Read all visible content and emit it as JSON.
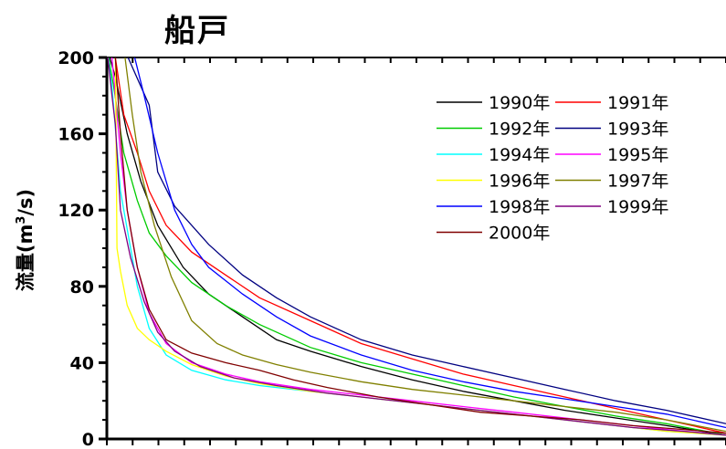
{
  "chart_data": {
    "type": "line",
    "title": "船戸",
    "xlabel": "",
    "ylabel": "流量(m3/s)",
    "ylabel_parts": {
      "main": "流量(m",
      "sup": "3",
      "tail": "/s)"
    },
    "ylim": [
      0,
      200
    ],
    "xlim": [
      0,
      365
    ],
    "y_ticks": [
      "0",
      "40",
      "80",
      "120",
      "160",
      "200"
    ],
    "y_tick_values": [
      0,
      40,
      80,
      120,
      160,
      200
    ],
    "grid": false,
    "legend_position": "top-right",
    "series": [
      {
        "name": "1990年",
        "color": "#000000",
        "x": [
          0,
          5,
          12,
          20,
          30,
          45,
          60,
          80,
          100,
          120,
          150,
          180,
          210,
          240,
          270,
          300,
          330,
          365
        ],
        "y": [
          205,
          190,
          160,
          135,
          112,
          90,
          76,
          64,
          52,
          46,
          38,
          31,
          25,
          20,
          15,
          11,
          7,
          2
        ]
      },
      {
        "name": "1991年",
        "color": "#ff0000",
        "x": [
          0,
          5,
          10,
          18,
          25,
          35,
          50,
          70,
          90,
          120,
          150,
          180,
          210,
          240,
          270,
          300,
          330,
          365
        ],
        "y": [
          205,
          200,
          170,
          150,
          130,
          112,
          98,
          86,
          74,
          62,
          50,
          42,
          34,
          28,
          22,
          16,
          10,
          3
        ]
      },
      {
        "name": "1992年",
        "color": "#00cc00",
        "x": [
          0,
          4,
          10,
          18,
          25,
          35,
          50,
          70,
          90,
          120,
          150,
          180,
          210,
          240,
          270,
          300,
          330,
          365
        ],
        "y": [
          205,
          185,
          150,
          125,
          108,
          96,
          82,
          70,
          60,
          48,
          40,
          34,
          28,
          22,
          17,
          12,
          8,
          2
        ]
      },
      {
        "name": "1993年",
        "color": "#000080",
        "x": [
          0,
          10,
          25,
          30,
          40,
          60,
          80,
          100,
          120,
          150,
          180,
          210,
          240,
          270,
          300,
          330,
          365
        ],
        "y": [
          205,
          205,
          175,
          140,
          122,
          102,
          86,
          74,
          64,
          52,
          44,
          38,
          32,
          26,
          20,
          15,
          8
        ]
      },
      {
        "name": "1994年",
        "color": "#00ffff",
        "x": [
          0,
          3,
          8,
          12,
          18,
          25,
          35,
          50,
          70,
          90,
          120,
          150,
          180,
          210,
          240,
          270,
          300,
          330,
          365
        ],
        "y": [
          205,
          185,
          130,
          110,
          80,
          58,
          44,
          36,
          31,
          28,
          25,
          22,
          19,
          16,
          13,
          10,
          7,
          4,
          2
        ]
      },
      {
        "name": "1995年",
        "color": "#ff00ff",
        "x": [
          0,
          3,
          8,
          12,
          18,
          25,
          35,
          50,
          70,
          90,
          120,
          150,
          180,
          210,
          240,
          270,
          300,
          330,
          365
        ],
        "y": [
          205,
          200,
          150,
          120,
          90,
          66,
          50,
          40,
          34,
          30,
          26,
          23,
          20,
          17,
          14,
          11,
          8,
          5,
          2
        ]
      },
      {
        "name": "1996年",
        "color": "#ffff00",
        "x": [
          0,
          5,
          6,
          8,
          12,
          18,
          25,
          35,
          50,
          70,
          90,
          120,
          150,
          180,
          210,
          240,
          270,
          300,
          330,
          365
        ],
        "y": [
          205,
          205,
          100,
          88,
          70,
          58,
          52,
          46,
          39,
          33,
          29,
          25,
          22,
          19,
          16,
          13,
          10,
          7,
          4,
          2
        ]
      },
      {
        "name": "1997年",
        "color": "#808000",
        "x": [
          0,
          10,
          15,
          20,
          28,
          38,
          50,
          65,
          80,
          100,
          120,
          150,
          180,
          210,
          240,
          270,
          300,
          330,
          365
        ],
        "y": [
          205,
          205,
          170,
          140,
          112,
          85,
          62,
          50,
          44,
          39,
          35,
          30,
          26,
          23,
          20,
          17,
          14,
          10,
          4
        ]
      },
      {
        "name": "1998年",
        "color": "#0000ff",
        "x": [
          0,
          15,
          22,
          30,
          40,
          50,
          60,
          80,
          100,
          120,
          150,
          180,
          210,
          240,
          270,
          300,
          330,
          365
        ],
        "y": [
          205,
          205,
          180,
          150,
          120,
          102,
          90,
          76,
          64,
          54,
          44,
          36,
          30,
          25,
          21,
          17,
          13,
          6
        ]
      },
      {
        "name": "1999年",
        "color": "#800080",
        "x": [
          0,
          3,
          5,
          8,
          14,
          22,
          30,
          40,
          55,
          75,
          100,
          130,
          160,
          190,
          220,
          250,
          280,
          310,
          340,
          365
        ],
        "y": [
          205,
          180,
          165,
          120,
          95,
          72,
          56,
          46,
          38,
          32,
          28,
          24,
          21,
          18,
          15,
          12,
          9,
          6,
          4,
          2
        ]
      },
      {
        "name": "2000年",
        "color": "#800000",
        "x": [
          0,
          5,
          8,
          12,
          18,
          25,
          35,
          50,
          70,
          90,
          110,
          130,
          160,
          190,
          220,
          250,
          280,
          310,
          340,
          365
        ],
        "y": [
          205,
          200,
          160,
          120,
          90,
          68,
          52,
          45,
          40,
          36,
          31,
          27,
          22,
          18,
          14,
          12,
          10,
          7,
          5,
          3
        ]
      }
    ]
  }
}
